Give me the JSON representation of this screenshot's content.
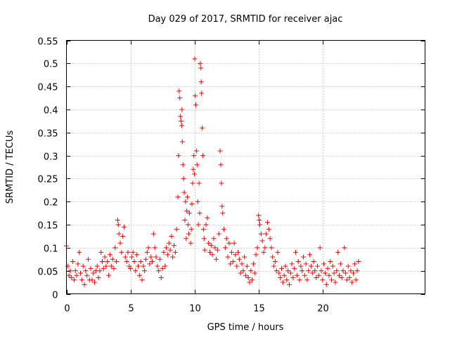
{
  "chart_data": {
    "type": "scatter",
    "title": "Day 029 of 2017, SRMTID for receiver ajac",
    "xlabel": "GPS time / hours",
    "ylabel": "SRMTID / TECUs",
    "xlim": [
      0,
      28
    ],
    "ylim": [
      0,
      0.55
    ],
    "x_ticks": [
      0,
      5,
      10,
      15,
      20
    ],
    "x_tick_labels": [
      "0",
      "5",
      "10",
      "15",
      "20"
    ],
    "y_ticks": [
      0,
      0.05,
      0.1,
      0.15,
      0.2,
      0.25,
      0.3,
      0.35,
      0.4,
      0.45,
      0.5,
      0.55
    ],
    "y_tick_labels": [
      "0",
      "0.05",
      "0.1",
      "0.15",
      "0.2",
      "0.25",
      "0.3",
      "0.35",
      "0.4",
      "0.45",
      "0.5",
      "0.55"
    ],
    "grid": true,
    "marker": "+",
    "color": "#ff0000",
    "series": [
      {
        "name": "SRMTID",
        "points": [
          [
            0.0,
            0.104
          ],
          [
            0.1,
            0.06
          ],
          [
            0.2,
            0.04
          ],
          [
            0.3,
            0.05
          ],
          [
            0.4,
            0.035
          ],
          [
            0.5,
            0.07
          ],
          [
            0.6,
            0.03
          ],
          [
            0.7,
            0.05
          ],
          [
            0.8,
            0.04
          ],
          [
            0.9,
            0.065
          ],
          [
            1.0,
            0.09
          ],
          [
            1.1,
            0.045
          ],
          [
            1.2,
            0.03
          ],
          [
            1.3,
            0.06
          ],
          [
            1.4,
            0.02
          ],
          [
            1.5,
            0.05
          ],
          [
            1.6,
            0.04
          ],
          [
            1.7,
            0.075
          ],
          [
            1.8,
            0.03
          ],
          [
            1.9,
            0.055
          ],
          [
            2.0,
            0.03
          ],
          [
            2.1,
            0.045
          ],
          [
            2.2,
            0.025
          ],
          [
            2.3,
            0.05
          ],
          [
            2.4,
            0.06
          ],
          [
            2.5,
            0.035
          ],
          [
            2.6,
            0.05
          ],
          [
            2.7,
            0.09
          ],
          [
            2.8,
            0.07
          ],
          [
            2.9,
            0.055
          ],
          [
            3.0,
            0.08
          ],
          [
            3.1,
            0.06
          ],
          [
            3.2,
            0.07
          ],
          [
            3.3,
            0.04
          ],
          [
            3.4,
            0.085
          ],
          [
            3.5,
            0.06
          ],
          [
            3.6,
            0.075
          ],
          [
            3.7,
            0.055
          ],
          [
            3.8,
            0.1
          ],
          [
            3.9,
            0.07
          ],
          [
            4.0,
            0.16
          ],
          [
            4.05,
            0.15
          ],
          [
            4.1,
            0.13
          ],
          [
            4.2,
            0.11
          ],
          [
            4.3,
            0.09
          ],
          [
            4.4,
            0.125
          ],
          [
            4.5,
            0.145
          ],
          [
            4.6,
            0.08
          ],
          [
            4.7,
            0.07
          ],
          [
            4.8,
            0.09
          ],
          [
            4.9,
            0.06
          ],
          [
            5.0,
            0.055
          ],
          [
            5.1,
            0.08
          ],
          [
            5.2,
            0.09
          ],
          [
            5.3,
            0.07
          ],
          [
            5.4,
            0.05
          ],
          [
            5.5,
            0.085
          ],
          [
            5.6,
            0.06
          ],
          [
            5.7,
            0.04
          ],
          [
            5.8,
            0.07
          ],
          [
            5.9,
            0.03
          ],
          [
            6.0,
            0.06
          ],
          [
            6.1,
            0.05
          ],
          [
            6.2,
            0.075
          ],
          [
            6.3,
            0.09
          ],
          [
            6.4,
            0.1
          ],
          [
            6.5,
            0.065
          ],
          [
            6.6,
            0.08
          ],
          [
            6.7,
            0.07
          ],
          [
            6.8,
            0.13
          ],
          [
            6.9,
            0.1
          ],
          [
            7.0,
            0.08
          ],
          [
            7.1,
            0.06
          ],
          [
            7.2,
            0.05
          ],
          [
            7.3,
            0.075
          ],
          [
            7.4,
            0.035
          ],
          [
            7.5,
            0.055
          ],
          [
            7.6,
            0.09
          ],
          [
            7.7,
            0.06
          ],
          [
            7.8,
            0.1
          ],
          [
            7.9,
            0.085
          ],
          [
            8.0,
            0.11
          ],
          [
            8.1,
            0.095
          ],
          [
            8.2,
            0.125
          ],
          [
            8.3,
            0.08
          ],
          [
            8.4,
            0.105
          ],
          [
            8.5,
            0.09
          ],
          [
            8.6,
            0.14
          ],
          [
            8.7,
            0.21
          ],
          [
            8.75,
            0.3
          ],
          [
            8.8,
            0.44
          ],
          [
            8.85,
            0.425
          ],
          [
            8.9,
            0.385
          ],
          [
            8.95,
            0.375
          ],
          [
            9.0,
            0.365
          ],
          [
            9.02,
            0.4
          ],
          [
            9.05,
            0.33
          ],
          [
            9.1,
            0.28
          ],
          [
            9.15,
            0.25
          ],
          [
            9.2,
            0.22
          ],
          [
            9.25,
            0.16
          ],
          [
            9.3,
            0.2
          ],
          [
            9.35,
            0.12
          ],
          [
            9.4,
            0.18
          ],
          [
            9.45,
            0.21
          ],
          [
            9.5,
            0.15
          ],
          [
            9.55,
            0.13
          ],
          [
            9.6,
            0.175
          ],
          [
            9.7,
            0.11
          ],
          [
            9.75,
            0.14
          ],
          [
            9.8,
            0.195
          ],
          [
            9.85,
            0.24
          ],
          [
            9.9,
            0.27
          ],
          [
            9.95,
            0.3
          ],
          [
            10.0,
            0.26
          ],
          [
            10.02,
            0.51
          ],
          [
            10.05,
            0.43
          ],
          [
            10.1,
            0.41
          ],
          [
            10.15,
            0.31
          ],
          [
            10.2,
            0.28
          ],
          [
            10.25,
            0.2
          ],
          [
            10.3,
            0.15
          ],
          [
            10.35,
            0.24
          ],
          [
            10.4,
            0.175
          ],
          [
            10.45,
            0.5
          ],
          [
            10.5,
            0.49
          ],
          [
            10.52,
            0.46
          ],
          [
            10.55,
            0.435
          ],
          [
            10.6,
            0.36
          ],
          [
            10.65,
            0.3
          ],
          [
            10.7,
            0.14
          ],
          [
            10.75,
            0.12
          ],
          [
            10.8,
            0.095
          ],
          [
            10.9,
            0.15
          ],
          [
            11.0,
            0.165
          ],
          [
            11.1,
            0.11
          ],
          [
            11.2,
            0.09
          ],
          [
            11.3,
            0.105
          ],
          [
            11.4,
            0.085
          ],
          [
            11.5,
            0.12
          ],
          [
            11.6,
            0.1
          ],
          [
            11.7,
            0.075
          ],
          [
            11.8,
            0.095
          ],
          [
            11.9,
            0.13
          ],
          [
            12.0,
            0.31
          ],
          [
            12.05,
            0.28
          ],
          [
            12.1,
            0.24
          ],
          [
            12.15,
            0.19
          ],
          [
            12.2,
            0.175
          ],
          [
            12.3,
            0.14
          ],
          [
            12.4,
            0.1
          ],
          [
            12.5,
            0.12
          ],
          [
            12.6,
            0.08
          ],
          [
            12.7,
            0.11
          ],
          [
            12.8,
            0.065
          ],
          [
            12.9,
            0.09
          ],
          [
            13.0,
            0.07
          ],
          [
            13.1,
            0.11
          ],
          [
            13.2,
            0.085
          ],
          [
            13.3,
            0.06
          ],
          [
            13.4,
            0.09
          ],
          [
            13.5,
            0.075
          ],
          [
            13.6,
            0.045
          ],
          [
            13.7,
            0.065
          ],
          [
            13.8,
            0.05
          ],
          [
            13.9,
            0.08
          ],
          [
            14.0,
            0.04
          ],
          [
            14.1,
            0.06
          ],
          [
            14.2,
            0.035
          ],
          [
            14.3,
            0.025
          ],
          [
            14.4,
            0.05
          ],
          [
            14.5,
            0.03
          ],
          [
            14.6,
            0.065
          ],
          [
            14.7,
            0.045
          ],
          [
            14.8,
            0.085
          ],
          [
            14.9,
            0.1
          ],
          [
            15.0,
            0.17
          ],
          [
            15.05,
            0.16
          ],
          [
            15.1,
            0.15
          ],
          [
            15.2,
            0.13
          ],
          [
            15.3,
            0.115
          ],
          [
            15.4,
            0.09
          ],
          [
            15.5,
            0.1
          ],
          [
            15.6,
            0.13
          ],
          [
            15.7,
            0.155
          ],
          [
            15.8,
            0.14
          ],
          [
            15.9,
            0.12
          ],
          [
            16.0,
            0.1
          ],
          [
            16.1,
            0.08
          ],
          [
            16.2,
            0.06
          ],
          [
            16.3,
            0.07
          ],
          [
            16.4,
            0.05
          ],
          [
            16.5,
            0.09
          ],
          [
            16.6,
            0.045
          ],
          [
            16.7,
            0.035
          ],
          [
            16.8,
            0.055
          ],
          [
            16.9,
            0.025
          ],
          [
            17.0,
            0.04
          ],
          [
            17.1,
            0.06
          ],
          [
            17.2,
            0.03
          ],
          [
            17.3,
            0.05
          ],
          [
            17.4,
            0.02
          ],
          [
            17.5,
            0.045
          ],
          [
            17.6,
            0.065
          ],
          [
            17.7,
            0.035
          ],
          [
            17.8,
            0.055
          ],
          [
            17.9,
            0.09
          ],
          [
            18.0,
            0.04
          ],
          [
            18.1,
            0.07
          ],
          [
            18.2,
            0.03
          ],
          [
            18.3,
            0.06
          ],
          [
            18.4,
            0.05
          ],
          [
            18.5,
            0.08
          ],
          [
            18.6,
            0.04
          ],
          [
            18.7,
            0.065
          ],
          [
            18.8,
            0.03
          ],
          [
            18.9,
            0.05
          ],
          [
            19.0,
            0.085
          ],
          [
            19.1,
            0.06
          ],
          [
            19.2,
            0.045
          ],
          [
            19.3,
            0.07
          ],
          [
            19.4,
            0.05
          ],
          [
            19.5,
            0.035
          ],
          [
            19.6,
            0.06
          ],
          [
            19.7,
            0.04
          ],
          [
            19.8,
            0.1
          ],
          [
            19.9,
            0.05
          ],
          [
            20.0,
            0.03
          ],
          [
            20.1,
            0.065
          ],
          [
            20.2,
            0.045
          ],
          [
            20.3,
            0.02
          ],
          [
            20.4,
            0.055
          ],
          [
            20.5,
            0.04
          ],
          [
            20.6,
            0.07
          ],
          [
            20.7,
            0.03
          ],
          [
            20.8,
            0.06
          ],
          [
            20.9,
            0.045
          ],
          [
            21.0,
            0.025
          ],
          [
            21.1,
            0.05
          ],
          [
            21.2,
            0.09
          ],
          [
            21.3,
            0.04
          ],
          [
            21.4,
            0.065
          ],
          [
            21.5,
            0.035
          ],
          [
            21.6,
            0.05
          ],
          [
            21.7,
            0.1
          ],
          [
            21.8,
            0.045
          ],
          [
            21.9,
            0.03
          ],
          [
            22.0,
            0.06
          ],
          [
            22.1,
            0.035
          ],
          [
            22.2,
            0.05
          ],
          [
            22.3,
            0.025
          ],
          [
            22.4,
            0.045
          ],
          [
            22.5,
            0.065
          ],
          [
            22.6,
            0.03
          ],
          [
            22.7,
            0.05
          ],
          [
            22.8,
            0.07
          ]
        ]
      }
    ]
  }
}
